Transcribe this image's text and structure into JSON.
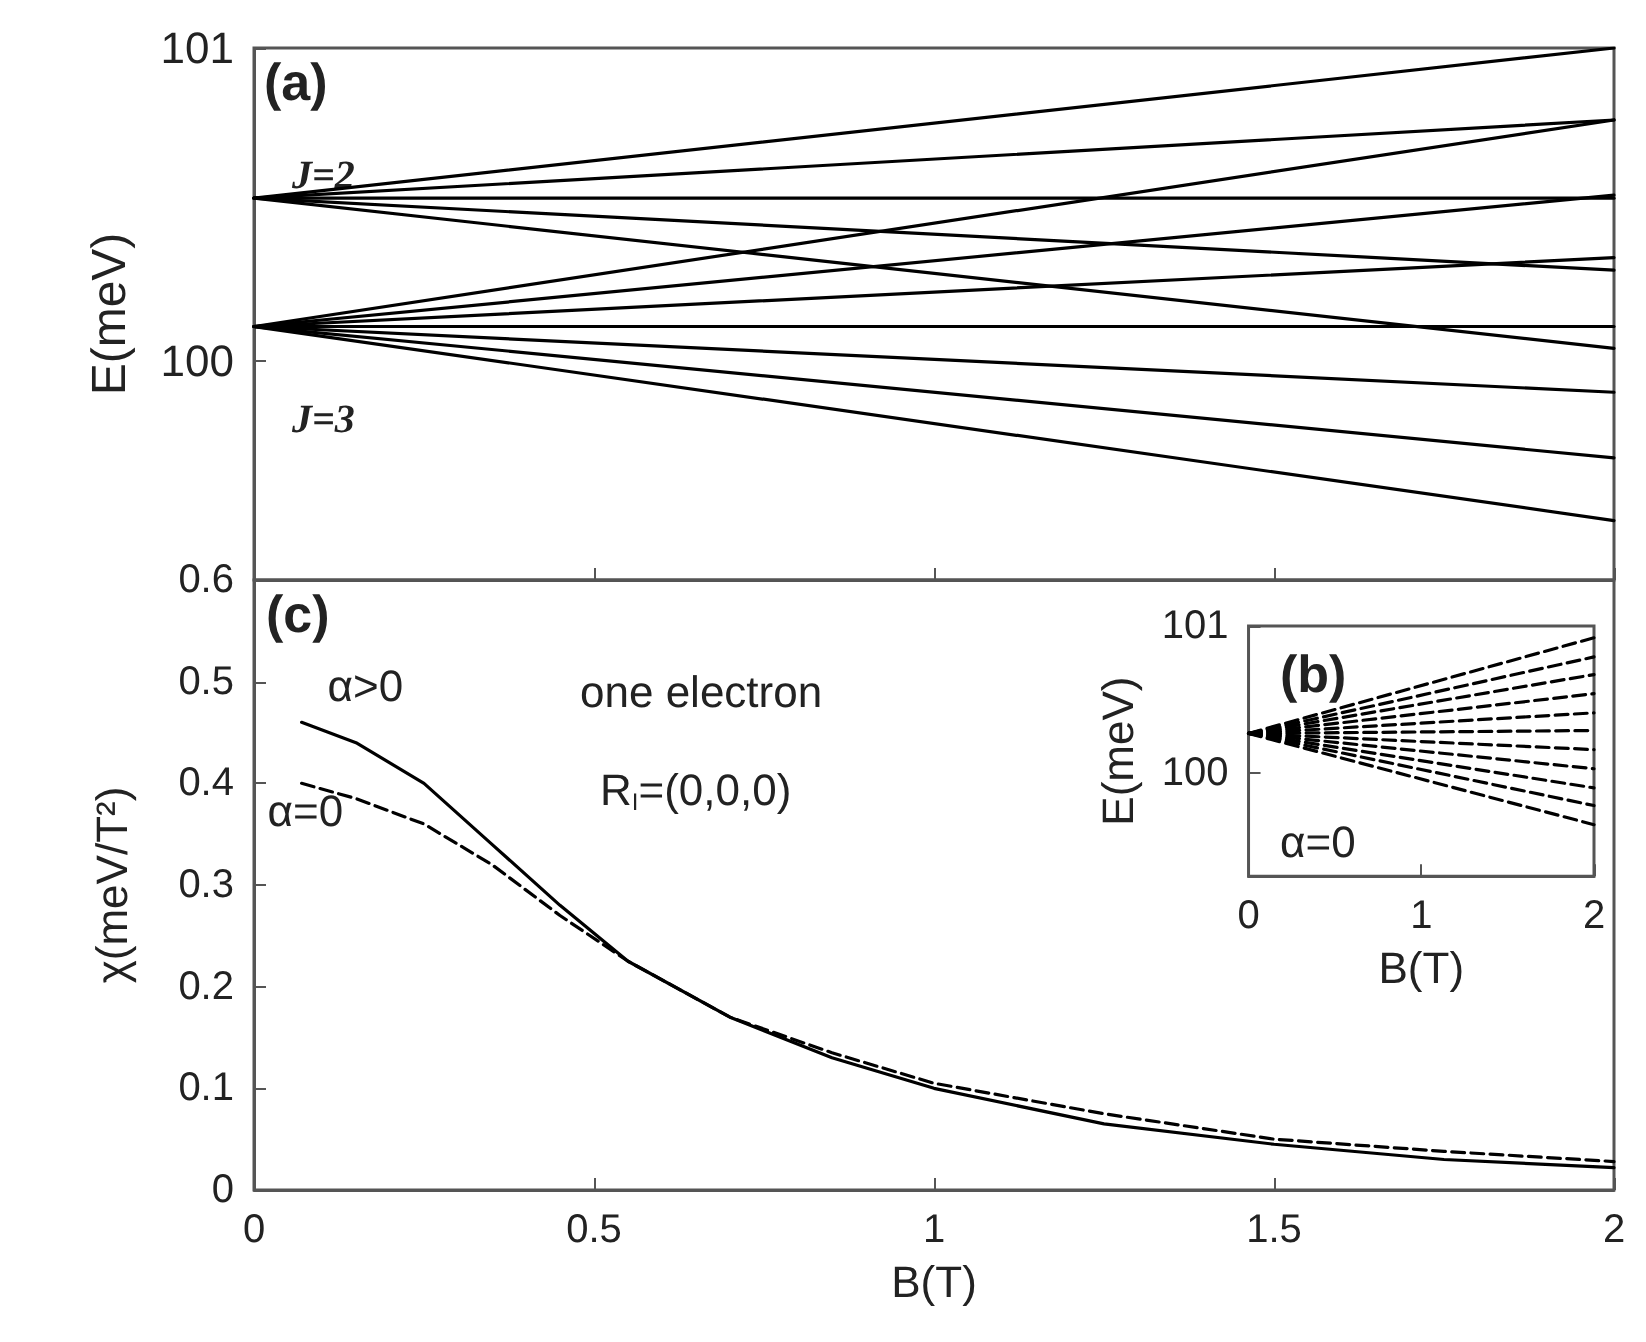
{
  "chart_data": [
    {
      "type": "line",
      "ylabel": "E(meV)",
      "xlim": [
        0,
        2
      ],
      "xticks": [
        0,
        0.5,
        1,
        1.5,
        2
      ],
      "ylim": [
        99.3,
        101
      ],
      "yticks": [
        100,
        101
      ],
      "tick_labels": "y",
      "line_style": "solid",
      "annotations": [
        "(a)",
        "J=2",
        "J=3"
      ],
      "series": [
        {
          "color": "#000000",
          "x": [
            0,
            2
          ],
          "values": [
            100.52,
            101.0
          ]
        },
        {
          "color": "#000000",
          "x": [
            0,
            2
          ],
          "values": [
            100.52,
            100.77
          ]
        },
        {
          "color": "#000000",
          "x": [
            0,
            2
          ],
          "values": [
            100.52,
            100.52
          ]
        },
        {
          "color": "#000000",
          "x": [
            0,
            2
          ],
          "values": [
            100.52,
            100.29
          ]
        },
        {
          "color": "#000000",
          "x": [
            0,
            2
          ],
          "values": [
            100.52,
            100.04
          ]
        },
        {
          "color": "#000000",
          "x": [
            0,
            2
          ],
          "values": [
            100.11,
            100.77
          ]
        },
        {
          "color": "#000000",
          "x": [
            0,
            2
          ],
          "values": [
            100.11,
            100.53
          ]
        },
        {
          "color": "#000000",
          "x": [
            0,
            2
          ],
          "values": [
            100.11,
            100.33
          ]
        },
        {
          "color": "#000000",
          "x": [
            0,
            2
          ],
          "values": [
            100.11,
            100.11
          ]
        },
        {
          "color": "#000000",
          "x": [
            0,
            2
          ],
          "values": [
            100.11,
            99.9
          ]
        },
        {
          "color": "#000000",
          "x": [
            0,
            2
          ],
          "values": [
            100.11,
            99.69
          ]
        },
        {
          "color": "#000000",
          "x": [
            0,
            2
          ],
          "values": [
            100.11,
            99.49
          ]
        }
      ]
    },
    {
      "type": "line",
      "xlabel": "B(T)",
      "ylabel": "χ(meV/T²)",
      "xlim": [
        0,
        2
      ],
      "xticks": [
        0,
        0.5,
        1,
        1.5,
        2
      ],
      "ylim": [
        0,
        0.6
      ],
      "yticks": [
        0,
        0.1,
        0.2,
        0.3,
        0.4,
        0.5,
        0.6
      ],
      "annotations": [
        "(c)",
        "one electron",
        "R$_{I}$=(0,0,0)"
      ],
      "series": [
        {
          "name": "α>0",
          "color": "#000000",
          "line_style": "solid",
          "x": [
            0.07,
            0.15,
            0.25,
            0.35,
            0.45,
            0.55,
            0.7,
            0.85,
            1.0,
            1.25,
            1.5,
            1.75,
            2.0
          ],
          "values": [
            0.46,
            0.44,
            0.4,
            0.34,
            0.28,
            0.225,
            0.17,
            0.13,
            0.1,
            0.065,
            0.045,
            0.03,
            0.022
          ]
        },
        {
          "name": "α=0",
          "color": "#000000",
          "line_style": "dashed",
          "x": [
            0.07,
            0.15,
            0.25,
            0.35,
            0.45,
            0.55,
            0.7,
            0.85,
            1.0,
            1.25,
            1.5,
            1.75,
            2.0
          ],
          "values": [
            0.4,
            0.385,
            0.36,
            0.32,
            0.27,
            0.225,
            0.17,
            0.135,
            0.105,
            0.075,
            0.05,
            0.038,
            0.028
          ]
        }
      ]
    },
    {
      "type": "line",
      "xlabel": "B(T)",
      "ylabel": "E(meV)",
      "xlim": [
        0,
        2
      ],
      "xticks": [
        0,
        1,
        2
      ],
      "ylim": [
        99.3,
        101
      ],
      "yticks": [
        100,
        101
      ],
      "line_style": "dashed",
      "annotations": [
        "(b)",
        "α=0"
      ],
      "series": [
        {
          "color": "#000000",
          "x": [
            0,
            2
          ],
          "values": [
            100.27,
            100.92
          ]
        },
        {
          "color": "#000000",
          "x": [
            0,
            2
          ],
          "values": [
            100.27,
            100.79
          ]
        },
        {
          "color": "#000000",
          "x": [
            0,
            2
          ],
          "values": [
            100.27,
            100.67
          ]
        },
        {
          "color": "#000000",
          "x": [
            0,
            2
          ],
          "values": [
            100.27,
            100.54
          ]
        },
        {
          "color": "#000000",
          "x": [
            0,
            2
          ],
          "values": [
            100.27,
            100.41
          ]
        },
        {
          "color": "#000000",
          "x": [
            0,
            2
          ],
          "values": [
            100.27,
            100.29
          ]
        },
        {
          "color": "#000000",
          "x": [
            0,
            2
          ],
          "values": [
            100.27,
            100.16
          ]
        },
        {
          "color": "#000000",
          "x": [
            0,
            2
          ],
          "values": [
            100.27,
            100.03
          ]
        },
        {
          "color": "#000000",
          "x": [
            0,
            2
          ],
          "values": [
            100.27,
            99.9
          ]
        },
        {
          "color": "#000000",
          "x": [
            0,
            2
          ],
          "values": [
            100.27,
            99.78
          ]
        },
        {
          "color": "#000000",
          "x": [
            0,
            2
          ],
          "values": [
            100.27,
            99.65
          ]
        }
      ]
    }
  ]
}
